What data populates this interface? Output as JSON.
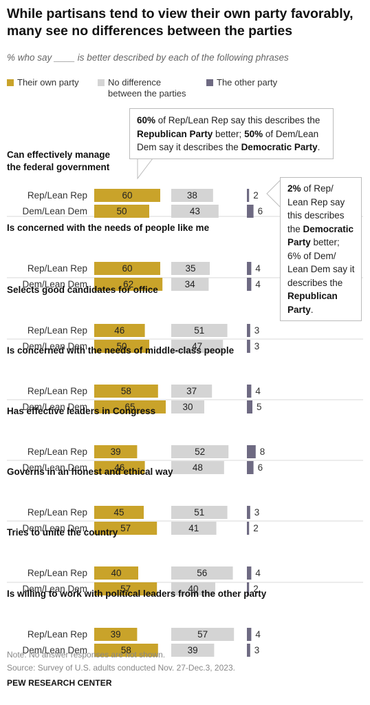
{
  "title": "While partisans tend to view their own party favorably, many see no differences between the parties",
  "subtitle": "% who say ____ is better described by each of the following phrases",
  "legend": [
    {
      "label": "Their own party",
      "color": "#C9A32A"
    },
    {
      "label": "No difference between the parties",
      "color": "#D4D4D4"
    },
    {
      "label": "The other party",
      "color": "#6E6A82"
    }
  ],
  "callout_top": {
    "p1": "60%",
    "t1": " of Rep/Lean Rep say this describes the ",
    "p2": "Republican Party",
    "t2": " better; ",
    "p3": "50%",
    "t3": " of Dem/Lean Dem say it describes the ",
    "p4": "Democratic Party",
    "t4": "."
  },
  "callout_side": {
    "p1": "2%",
    "t1": " of Rep/ Lean Rep say this describes the ",
    "p2": "Democratic Party",
    "t2": " better; 6% of Dem/ Lean Dem say it describes the ",
    "p3": "Republican Party",
    "t3": "."
  },
  "chart_data": {
    "type": "bar",
    "series": [
      {
        "name": "Their own party",
        "color": "#C9A32A"
      },
      {
        "name": "No difference between the parties",
        "color": "#D4D4D4"
      },
      {
        "name": "The other party",
        "color": "#6E6A82"
      }
    ],
    "groups": [
      {
        "label": "Can effectively manage the federal  government",
        "rows": [
          {
            "name": "Rep/Lean Rep",
            "values": [
              60,
              38,
              2
            ]
          },
          {
            "name": "Dem/Lean Dem",
            "values": [
              50,
              43,
              6
            ]
          }
        ]
      },
      {
        "label": "Is concerned with the needs of people like me",
        "rows": [
          {
            "name": "Rep/Lean Rep",
            "values": [
              60,
              35,
              4
            ]
          },
          {
            "name": "Dem/Lean Dem",
            "values": [
              62,
              34,
              4
            ]
          }
        ]
      },
      {
        "label": "Selects good candidates for office",
        "rows": [
          {
            "name": "Rep/Lean Rep",
            "values": [
              46,
              51,
              3
            ]
          },
          {
            "name": "Dem/Lean Dem",
            "values": [
              50,
              47,
              3
            ]
          }
        ]
      },
      {
        "label": "Is concerned with the needs of middle-class people",
        "rows": [
          {
            "name": "Rep/Lean Rep",
            "values": [
              58,
              37,
              4
            ]
          },
          {
            "name": "Dem/Lean Dem",
            "values": [
              65,
              30,
              5
            ]
          }
        ]
      },
      {
        "label": "Has effective leaders in Congress",
        "rows": [
          {
            "name": "Rep/Lean Rep",
            "values": [
              39,
              52,
              8
            ]
          },
          {
            "name": "Dem/Lean Dem",
            "values": [
              46,
              48,
              6
            ]
          }
        ]
      },
      {
        "label": "Governs in an honest and ethical way",
        "rows": [
          {
            "name": "Rep/Lean Rep",
            "values": [
              45,
              51,
              3
            ]
          },
          {
            "name": "Dem/Lean Dem",
            "values": [
              57,
              41,
              2
            ]
          }
        ]
      },
      {
        "label": "Tries to unite the country",
        "rows": [
          {
            "name": "Rep/Lean Rep",
            "values": [
              40,
              56,
              4
            ]
          },
          {
            "name": "Dem/Lean Dem",
            "values": [
              57,
              40,
              2
            ]
          }
        ]
      },
      {
        "label": "Is willing to work with political leaders from the other party",
        "rows": [
          {
            "name": "Rep/Lean Rep",
            "values": [
              39,
              57,
              4
            ]
          },
          {
            "name": "Dem/Lean Dem",
            "values": [
              58,
              39,
              3
            ]
          }
        ]
      }
    ]
  },
  "note": "Note: No answer responses are not shown.",
  "source": "Source: Survey of U.S. adults conducted Nov. 27-Dec.3, 2023.",
  "brand": "PEW RESEARCH CENTER"
}
